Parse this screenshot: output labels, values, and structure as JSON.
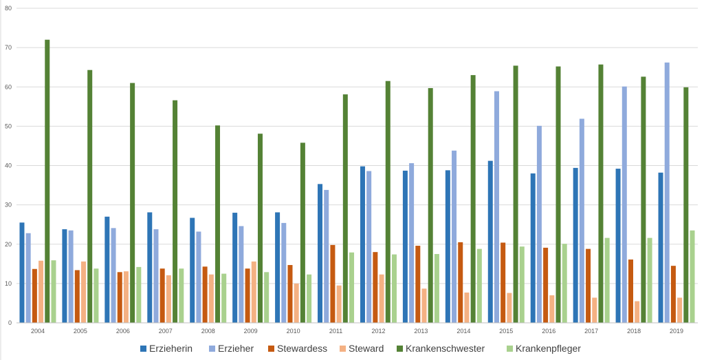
{
  "chart_data": {
    "type": "bar",
    "title": "",
    "xlabel": "",
    "ylabel": "",
    "ylim": [
      0,
      80
    ],
    "yticks": [
      0,
      10,
      20,
      30,
      40,
      50,
      60,
      70,
      80
    ],
    "grid": "horizontal",
    "legend_position": "bottom",
    "categories": [
      "2004",
      "2005",
      "2006",
      "2007",
      "2008",
      "2009",
      "2010",
      "2011",
      "2012",
      "2013",
      "2014",
      "2015",
      "2016",
      "2017",
      "2018",
      "2019"
    ],
    "series": [
      {
        "name": "Erzieherin",
        "color": "#2e75b6",
        "values": [
          25.5,
          23.8,
          27.0,
          28.1,
          26.7,
          28.0,
          28.1,
          35.3,
          39.8,
          38.7,
          38.8,
          41.2,
          38.0,
          39.4,
          39.2,
          38.2
        ]
      },
      {
        "name": "Erzieher",
        "color": "#8faadc",
        "values": [
          22.8,
          23.5,
          24.1,
          23.8,
          23.2,
          24.6,
          25.4,
          33.8,
          38.6,
          40.6,
          43.8,
          58.9,
          50.1,
          51.9,
          60.1,
          66.2
        ]
      },
      {
        "name": "Stewardess",
        "color": "#c55a11",
        "values": [
          13.7,
          13.4,
          12.9,
          13.8,
          14.3,
          13.8,
          14.7,
          19.8,
          18.0,
          19.6,
          20.5,
          20.4,
          19.1,
          18.8,
          16.1,
          14.5
        ]
      },
      {
        "name": "Steward",
        "color": "#f4b183",
        "values": [
          15.8,
          15.6,
          13.1,
          12.1,
          12.3,
          15.6,
          10.0,
          9.5,
          12.3,
          8.7,
          7.7,
          7.6,
          7.0,
          6.4,
          5.5,
          6.4
        ]
      },
      {
        "name": "Krankenschwester",
        "color": "#548235",
        "values": [
          72.0,
          64.3,
          61.0,
          56.6,
          50.2,
          48.1,
          45.8,
          58.1,
          61.5,
          59.7,
          63.0,
          65.4,
          65.2,
          65.7,
          62.6,
          59.9
        ]
      },
      {
        "name": "Krankenpfleger",
        "color": "#a9d18e",
        "values": [
          15.9,
          13.8,
          14.2,
          13.8,
          12.5,
          12.9,
          12.3,
          17.9,
          17.4,
          17.5,
          18.8,
          19.4,
          20.1,
          21.6,
          21.6,
          23.5
        ]
      }
    ]
  }
}
